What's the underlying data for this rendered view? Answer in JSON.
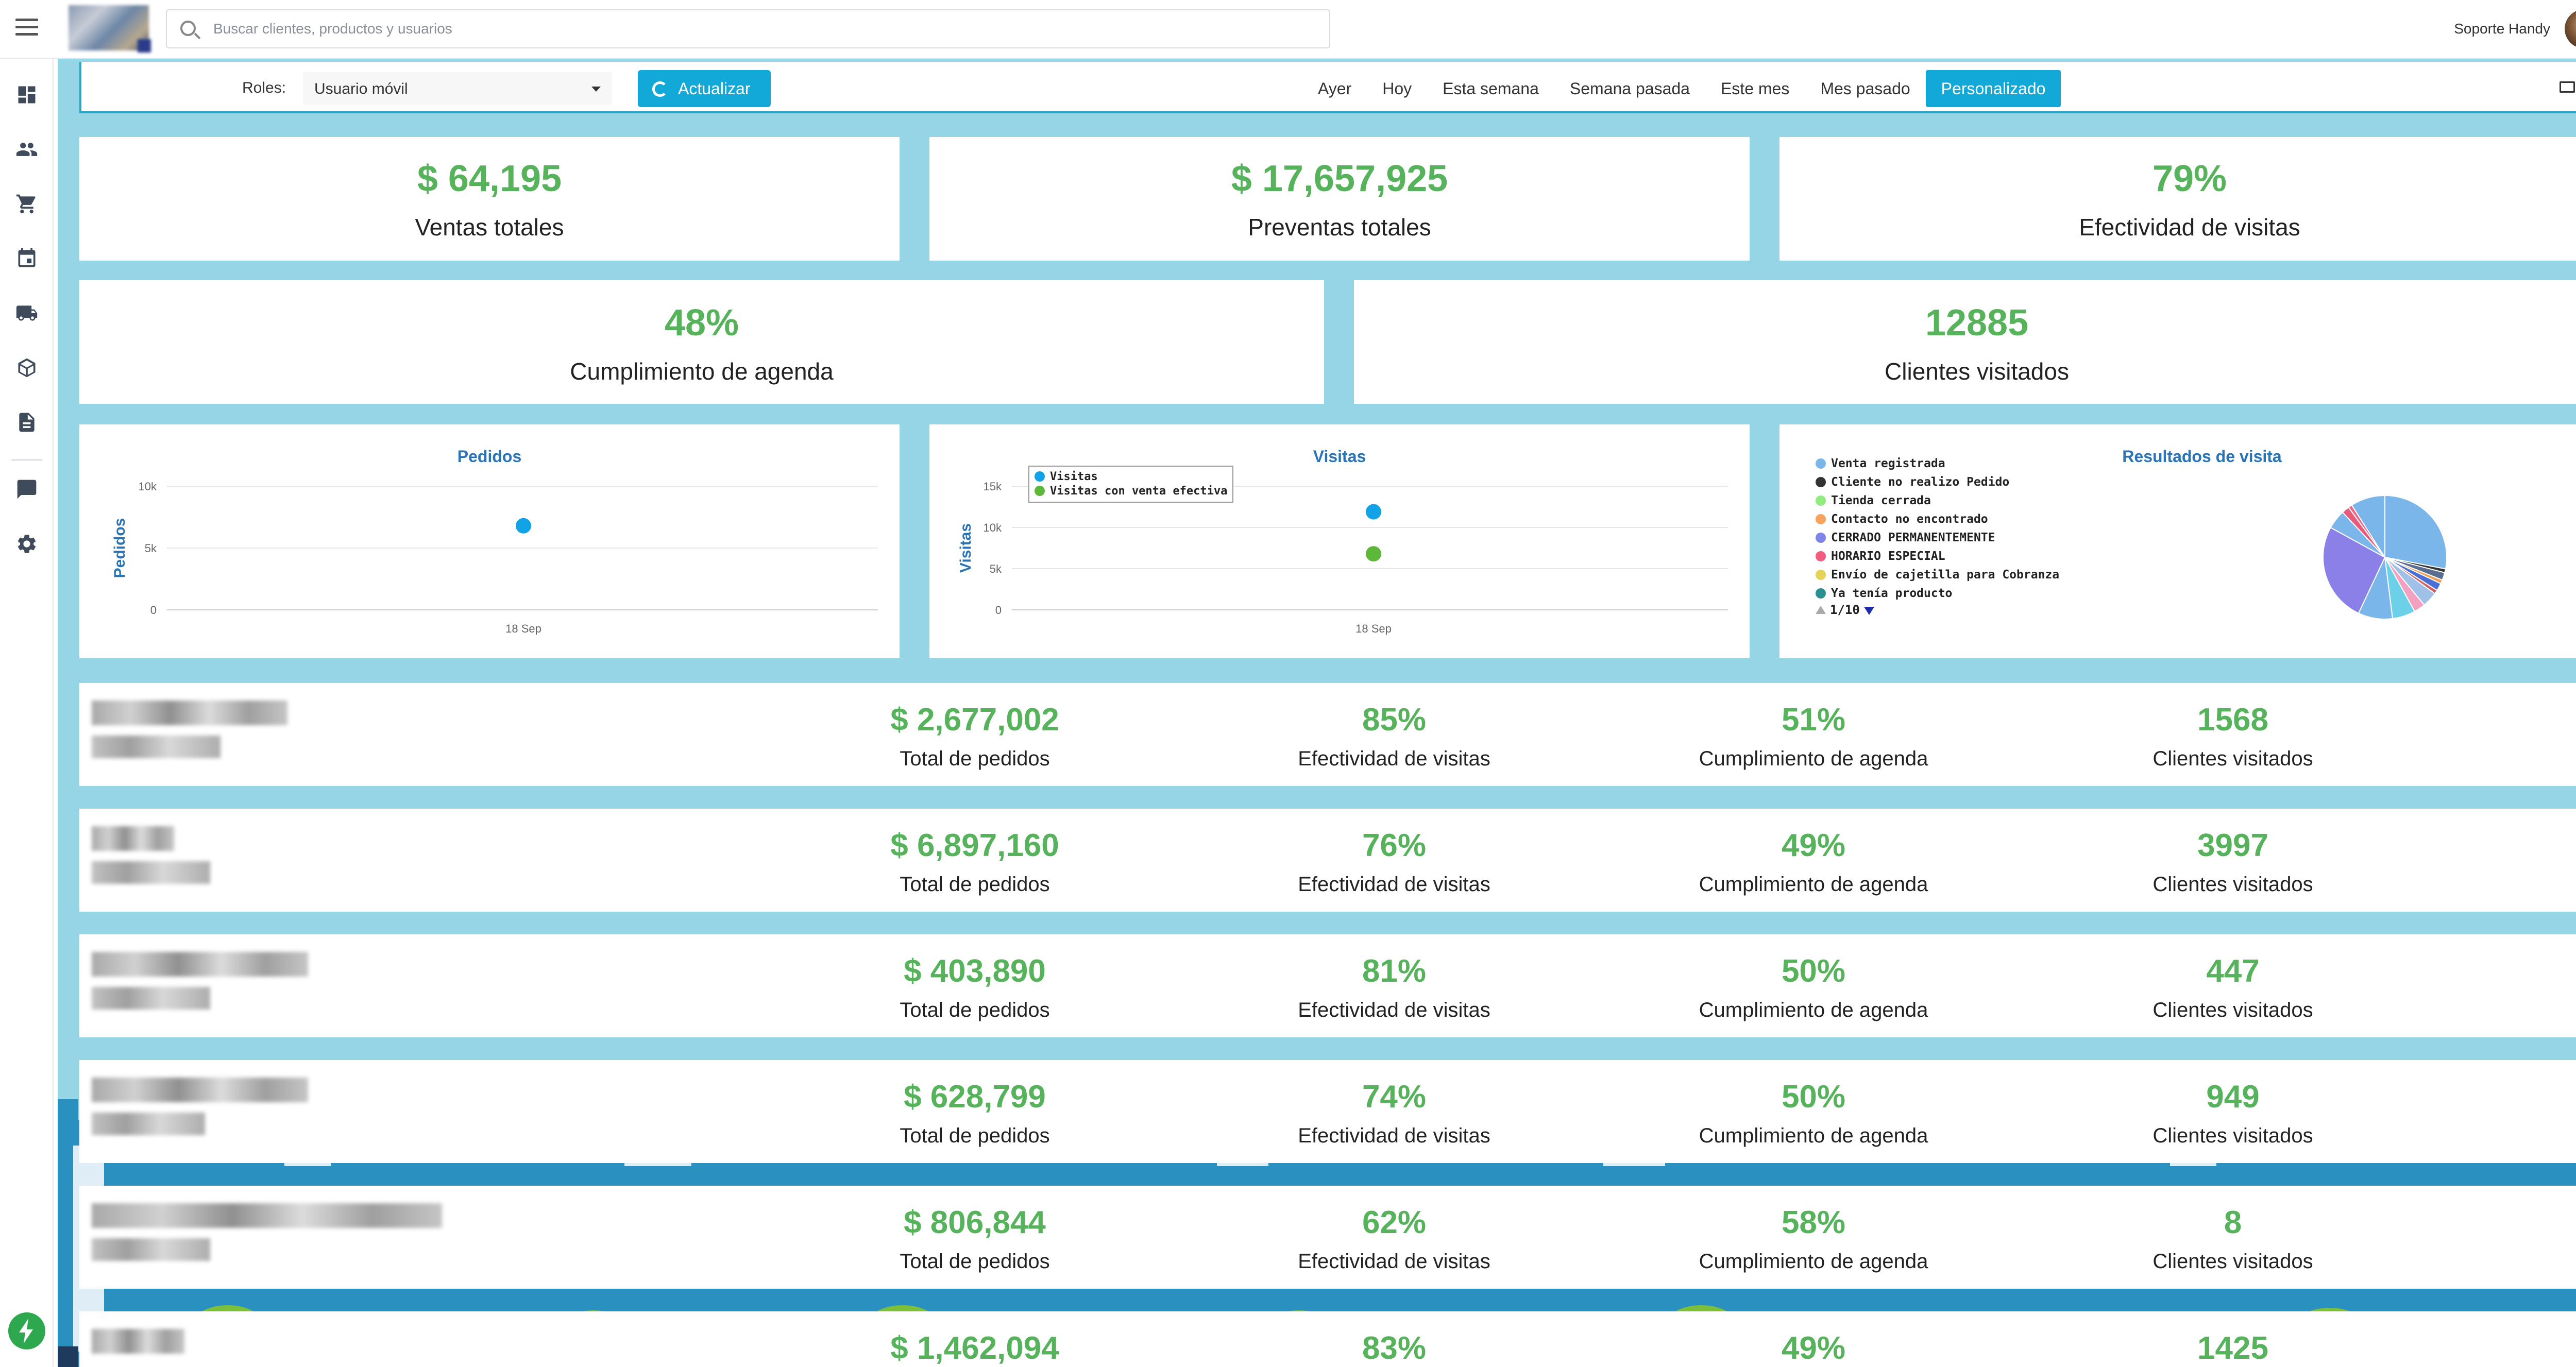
{
  "header": {
    "search_placeholder": "Buscar clientes, productos y usuarios",
    "user_name": "Soporte Handy"
  },
  "sidebar": {
    "icons": [
      "dashboard-icon",
      "users-icon",
      "cart-icon",
      "calendar-icon",
      "truck-icon",
      "box-icon",
      "document-icon",
      "chat-icon",
      "gear-icon",
      "bolt-icon"
    ]
  },
  "toolbar": {
    "roles_label": "Roles:",
    "roles_value": "Usuario móvil",
    "update_label": "Actualizar",
    "filters": [
      "Ayer",
      "Hoy",
      "Esta semana",
      "Semana pasada",
      "Este mes",
      "Mes pasado",
      "Personalizado"
    ],
    "active_filter": "Personalizado"
  },
  "kpis": {
    "ventas": {
      "value": "$ 64,195",
      "label": "Ventas totales"
    },
    "preventas": {
      "value": "$ 17,657,925",
      "label": "Preventas totales"
    },
    "efectividad": {
      "value": "79%",
      "label": "Efectividad de visitas"
    },
    "cumplimiento": {
      "value": "48%",
      "label": "Cumplimiento de agenda"
    },
    "clientes": {
      "value": "12885",
      "label": "Clientes visitados"
    }
  },
  "charts": {
    "pedidos": {
      "title": "Pedidos",
      "ylabel": "Pedidos",
      "yticks": [
        "10k",
        "5k",
        "0"
      ],
      "xtick": "18 Sep"
    },
    "visitas": {
      "title": "Visitas",
      "ylabel": "Visitas",
      "yticks": [
        "15k",
        "10k",
        "5k",
        "0"
      ],
      "xtick": "18 Sep",
      "legend": [
        "Visitas",
        "Visitas con venta efectiva"
      ]
    },
    "resultados": {
      "title": "Resultados de visita",
      "legend": [
        "Venta registrada",
        "Cliente no realizo Pedido",
        "Tienda cerrada",
        "Contacto no encontrado",
        "CERRADO PERMANENTEMENTE",
        "HORARIO ESPECIAL",
        "Envío de cajetilla para Cobranza",
        "Ya tenía producto"
      ],
      "pager": "1/10"
    }
  },
  "chart_data": [
    {
      "type": "scatter",
      "title": "Pedidos",
      "ylabel": "Pedidos",
      "x": [
        "18 Sep"
      ],
      "series": [
        {
          "values": [
            6800
          ]
        }
      ],
      "ylim": [
        0,
        10000
      ],
      "color": "#12a3e6"
    },
    {
      "type": "scatter",
      "title": "Visitas",
      "ylabel": "Visitas",
      "x": [
        "18 Sep"
      ],
      "series": [
        {
          "name": "Visitas",
          "values": [
            11900
          ],
          "color": "#12a3e6"
        },
        {
          "name": "Visitas con venta efectiva",
          "values": [
            6800
          ],
          "color": "#5db83a"
        }
      ],
      "ylim": [
        0,
        15000
      ],
      "legend": "top-left"
    },
    {
      "type": "pie",
      "title": "Resultados de visita",
      "slices": [
        {
          "value": 28,
          "color": "#7ab6ea"
        },
        {
          "value": 1,
          "color": "#333333"
        },
        {
          "value": 2,
          "color": "#5a6f90"
        },
        {
          "value": 1,
          "color": "#f0a050"
        },
        {
          "value": 2,
          "color": "#4b6fd6"
        },
        {
          "value": 1,
          "color": "#d16060"
        },
        {
          "value": 4,
          "color": "#a0c0e8"
        },
        {
          "value": 3,
          "color": "#f4a0c0"
        },
        {
          "value": 6,
          "color": "#6cd0e8"
        },
        {
          "value": 9,
          "color": "#7ab6ea"
        },
        {
          "value": 26,
          "color": "#8b7fe8"
        },
        {
          "value": 5,
          "color": "#7ab6ea"
        },
        {
          "value": 2,
          "color": "#e85a7a"
        },
        {
          "value": 1,
          "color": "#ee6688"
        },
        {
          "value": 9,
          "color": "#7ab6ea"
        }
      ]
    }
  ],
  "rows": [
    {
      "total": "$ 2,677,002",
      "efectividad": "85%",
      "cumplimiento": "51%",
      "clientes": "1568"
    },
    {
      "total": "$ 6,897,160",
      "efectividad": "76%",
      "cumplimiento": "49%",
      "clientes": "3997"
    },
    {
      "total": "$ 403,890",
      "efectividad": "81%",
      "cumplimiento": "50%",
      "clientes": "447"
    },
    {
      "total": "$ 628,799",
      "efectividad": "74%",
      "cumplimiento": "50%",
      "clientes": "949"
    },
    {
      "total": "$ 806,844",
      "efectividad": "62%",
      "cumplimiento": "58%",
      "clientes": "8"
    },
    {
      "total": "$ 1,462,094",
      "efectividad": "83%",
      "cumplimiento": "49%",
      "clientes": "1425"
    }
  ],
  "row_labels": {
    "total": "Total de pedidos",
    "efectividad": "Efectividad de visitas",
    "cumplimiento": "Cumplimiento de agenda",
    "clientes": "Clientes visitados"
  },
  "colors": {
    "accent": "#12a8d8",
    "green": "#56b35b",
    "background": "#96d5e6",
    "chart_title": "#2a73b4"
  }
}
